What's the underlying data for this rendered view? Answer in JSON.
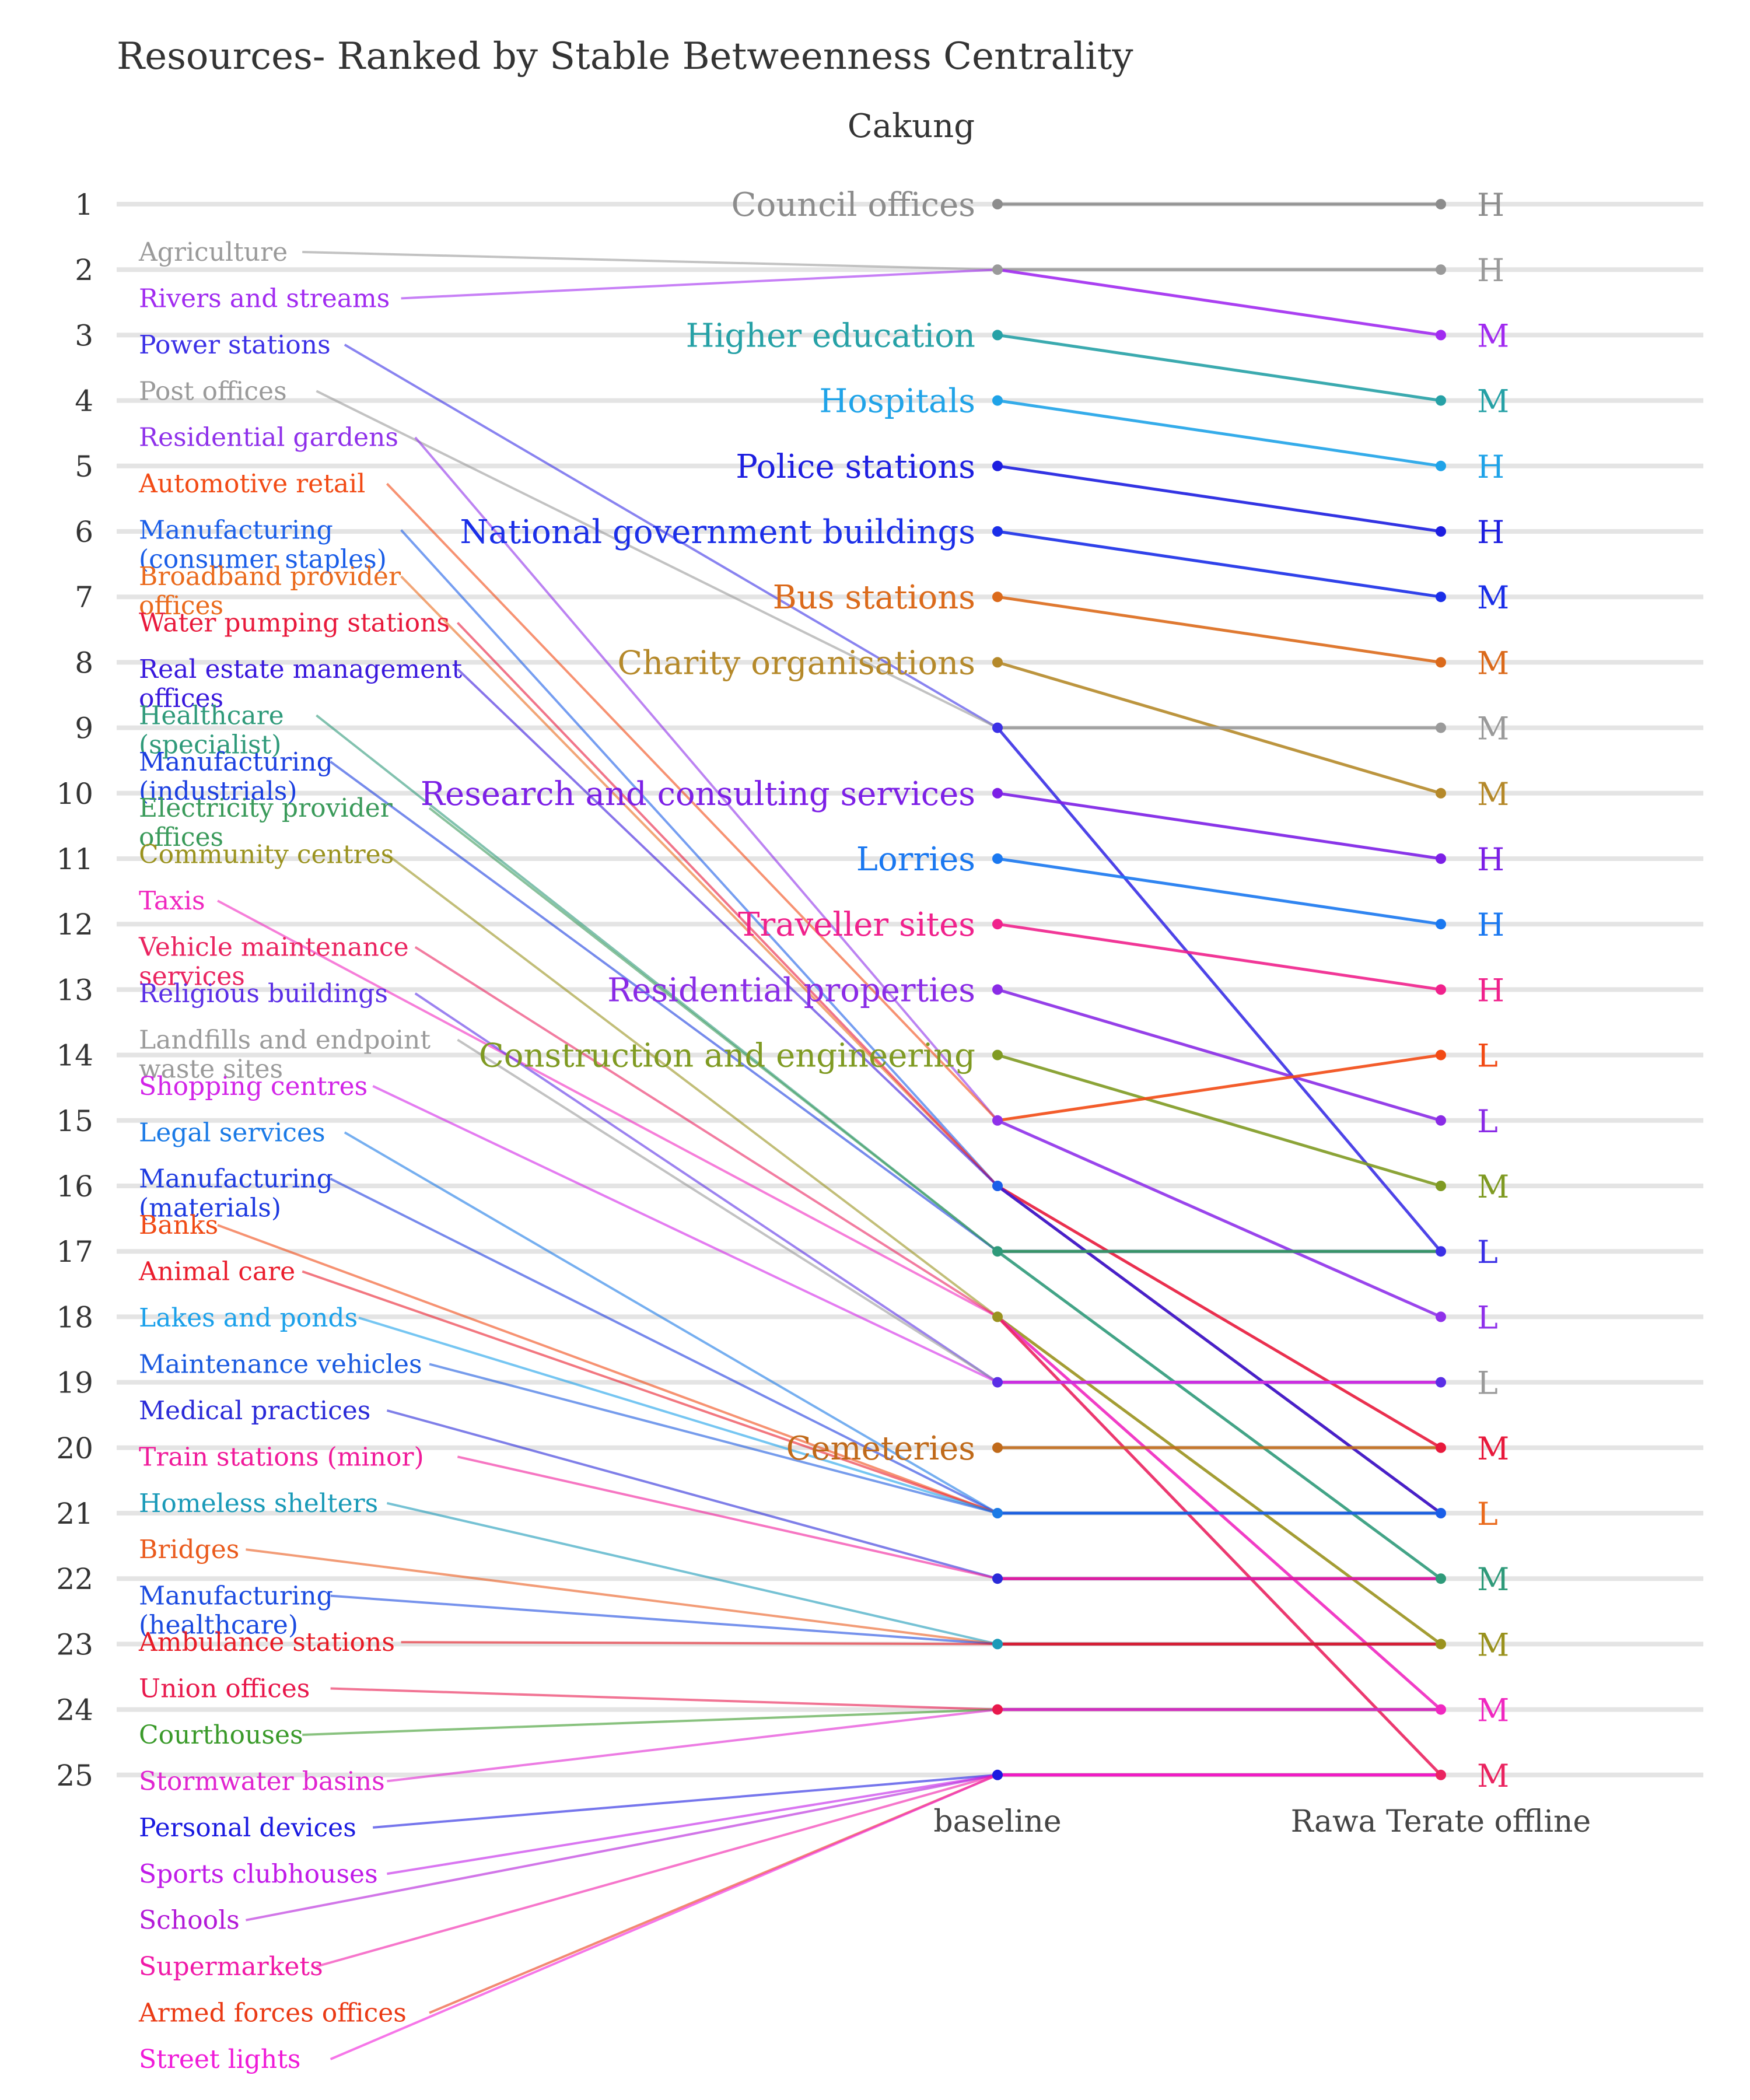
{
  "chart_data": {
    "type": "line",
    "title": "Resources- Ranked by Stable Betweenness Centrality",
    "subtitle": "Cakung",
    "x_categories": [
      "baseline",
      "Rawa Terate offline"
    ],
    "y_ticks": [
      "1",
      "2",
      "3",
      "4",
      "5",
      "6",
      "7",
      "8",
      "9",
      "10",
      "11",
      "12",
      "13",
      "14",
      "15",
      "16",
      "17",
      "18",
      "19",
      "20",
      "21",
      "22",
      "23",
      "24",
      "25"
    ],
    "ylim": [
      1,
      25
    ],
    "y_reversed": true,
    "grid": true,
    "series": [
      {
        "name": "Council offices",
        "baseline": 1,
        "offline": 1,
        "level": "H",
        "color": "#8c8c8c",
        "label_side": "right"
      },
      {
        "name": "Agriculture",
        "baseline": 2,
        "offline": 2,
        "level": "H",
        "color": "#9a9a9a",
        "label_side": "left"
      },
      {
        "name": "Rivers and streams",
        "baseline": 2,
        "offline": 3,
        "level": "M",
        "color": "#a12bf0",
        "label_side": "left"
      },
      {
        "name": "Higher education",
        "baseline": 3,
        "offline": 4,
        "level": "M",
        "color": "#26a1a6",
        "label_side": "right"
      },
      {
        "name": "Hospitals",
        "baseline": 4,
        "offline": 5,
        "level": "H",
        "color": "#1fa3e8",
        "label_side": "right"
      },
      {
        "name": "Police stations",
        "baseline": 5,
        "offline": 6,
        "level": "H",
        "color": "#1d1ee0",
        "label_side": "right"
      },
      {
        "name": "National government buildings",
        "baseline": 6,
        "offline": 7,
        "level": "M",
        "color": "#1a2ee8",
        "label_side": "right"
      },
      {
        "name": "Bus stations",
        "baseline": 7,
        "offline": 8,
        "level": "M",
        "color": "#db6a1b",
        "label_side": "right"
      },
      {
        "name": "Charity organisations",
        "baseline": 8,
        "offline": 10,
        "level": "M",
        "color": "#b5892a",
        "label_side": "right"
      },
      {
        "name": "Power stations",
        "baseline": 9,
        "offline": 17,
        "level": "L",
        "color": "#3b30e6",
        "label_side": "left"
      },
      {
        "name": "Post offices",
        "baseline": 9,
        "offline": 9,
        "level": "M",
        "color": "#9a9a9a",
        "label_side": "left"
      },
      {
        "name": "Research and consulting services",
        "baseline": 10,
        "offline": 11,
        "level": "H",
        "color": "#7c1fe6",
        "label_side": "right"
      },
      {
        "name": "Lorries",
        "baseline": 11,
        "offline": 12,
        "level": "H",
        "color": "#1a78f0",
        "label_side": "right"
      },
      {
        "name": "Traveller sites",
        "baseline": 12,
        "offline": 13,
        "level": "H",
        "color": "#f0218c",
        "label_side": "right"
      },
      {
        "name": "Residential properties",
        "baseline": 13,
        "offline": 15,
        "level": "L",
        "color": "#8a2be6",
        "label_side": "right"
      },
      {
        "name": "Construction and engineering",
        "baseline": 14,
        "offline": 16,
        "level": "M",
        "color": "#7f9a22",
        "label_side": "right"
      },
      {
        "name": "Residential gardens",
        "baseline": 15,
        "offline": 18,
        "level": "L",
        "color": "#8f31ea",
        "label_side": "left"
      },
      {
        "name": "Automotive retail",
        "baseline": 15,
        "offline": 14,
        "level": "L",
        "color": "#f24a14",
        "label_side": "left"
      },
      {
        "name": "Manufacturing\n(consumer staples)",
        "baseline": 16,
        "offline": 21,
        "level": "",
        "color": "#1a5ee8",
        "label_side": "left"
      },
      {
        "name": "Broadband provider\noffices",
        "baseline": 16,
        "offline": 21,
        "level": "L",
        "color": "#ea6a1c",
        "label_side": "left"
      },
      {
        "name": "Water pumping stations",
        "baseline": 16,
        "offline": 20,
        "level": "M",
        "color": "#e8193c",
        "label_side": "left"
      },
      {
        "name": "Real estate management\noffices",
        "baseline": 16,
        "offline": 21,
        "level": "",
        "color": "#3818dc",
        "label_side": "left"
      },
      {
        "name": "Healthcare\n(specialist)",
        "baseline": 17,
        "offline": 22,
        "level": "M",
        "color": "#2f9a7a",
        "label_side": "left"
      },
      {
        "name": "Manufacturing\n(industrials)",
        "baseline": 17,
        "offline": 17,
        "level": "",
        "color": "#1a3ee0",
        "label_side": "left"
      },
      {
        "name": "Electricity provider\noffices",
        "baseline": 17,
        "offline": 17,
        "level": "",
        "color": "#3a9a5a",
        "label_side": "left"
      },
      {
        "name": "Community centres",
        "baseline": 18,
        "offline": 23,
        "level": "M",
        "color": "#9a921e",
        "label_side": "left"
      },
      {
        "name": "Taxis",
        "baseline": 18,
        "offline": 24,
        "level": "M",
        "color": "#f028c0",
        "label_side": "left"
      },
      {
        "name": "Vehicle maintenance\nservices",
        "baseline": 18,
        "offline": 25,
        "level": "M",
        "color": "#ea2460",
        "label_side": "left"
      },
      {
        "name": "Religious buildings",
        "baseline": 19,
        "offline": 19,
        "level": "",
        "color": "#5a2ee6",
        "label_side": "left"
      },
      {
        "name": "Landfills and endpoint\nwaste sites",
        "baseline": 19,
        "offline": 19,
        "level": "L",
        "color": "#9a9a9a",
        "label_side": "left"
      },
      {
        "name": "Shopping centres",
        "baseline": 19,
        "offline": 19,
        "level": "",
        "color": "#d224e8",
        "label_side": "left"
      },
      {
        "name": "Legal services",
        "baseline": 21,
        "offline": 21,
        "level": "",
        "color": "#1a7ae6",
        "label_side": "left"
      },
      {
        "name": "Manufacturing\n(materials)",
        "baseline": 21,
        "offline": 21,
        "level": "",
        "color": "#1d3ae0",
        "label_side": "left"
      },
      {
        "name": "Cemeteries",
        "baseline": 20,
        "offline": 20,
        "level": "",
        "color": "#c06a1a",
        "label_side": "right"
      },
      {
        "name": "Banks",
        "baseline": 21,
        "offline": 21,
        "level": "",
        "color": "#f04a14",
        "label_side": "left"
      },
      {
        "name": "Animal care",
        "baseline": 21,
        "offline": 21,
        "level": "",
        "color": "#ea1c2c",
        "label_side": "left"
      },
      {
        "name": "Lakes and ponds",
        "baseline": 21,
        "offline": 21,
        "level": "",
        "color": "#1aa0ea",
        "label_side": "left"
      },
      {
        "name": "Maintenance vehicles",
        "baseline": 21,
        "offline": 21,
        "level": "",
        "color": "#1a5ae0",
        "label_side": "left"
      },
      {
        "name": "Medical practices",
        "baseline": 22,
        "offline": 22,
        "level": "",
        "color": "#2a2ad8",
        "label_side": "left"
      },
      {
        "name": "Train stations (minor)",
        "baseline": 22,
        "offline": 22,
        "level": "",
        "color": "#f01a9a",
        "label_side": "left"
      },
      {
        "name": "Homeless shelters",
        "baseline": 23,
        "offline": 23,
        "level": "",
        "color": "#1a9ab8",
        "label_side": "left"
      },
      {
        "name": "Bridges",
        "baseline": 23,
        "offline": 23,
        "level": "",
        "color": "#ea5a1c",
        "label_side": "left"
      },
      {
        "name": "Manufacturing\n(healthcare)",
        "baseline": 23,
        "offline": 23,
        "level": "",
        "color": "#1a4ae0",
        "label_side": "left"
      },
      {
        "name": "Ambulance stations",
        "baseline": 23,
        "offline": 23,
        "level": "",
        "color": "#e81a24",
        "label_side": "left"
      },
      {
        "name": "Union offices",
        "baseline": 24,
        "offline": 24,
        "level": "",
        "color": "#e8184c",
        "label_side": "left"
      },
      {
        "name": "Courthouses",
        "baseline": 24,
        "offline": 24,
        "level": "",
        "color": "#3a9a2a",
        "label_side": "left"
      },
      {
        "name": "Stormwater basins",
        "baseline": 24,
        "offline": 24,
        "level": "",
        "color": "#e024d0",
        "label_side": "left"
      },
      {
        "name": "Personal devices",
        "baseline": 25,
        "offline": 25,
        "level": "",
        "color": "#1a1ae0",
        "label_side": "left"
      },
      {
        "name": "Sports clubhouses",
        "baseline": 25,
        "offline": 25,
        "level": "",
        "color": "#c01ae8",
        "label_side": "left"
      },
      {
        "name": "Schools",
        "baseline": 25,
        "offline": 25,
        "level": "",
        "color": "#b31ad8",
        "label_side": "left"
      },
      {
        "name": "Supermarkets",
        "baseline": 25,
        "offline": 25,
        "level": "",
        "color": "#f01aa8",
        "label_side": "left"
      },
      {
        "name": "Armed forces offices",
        "baseline": 25,
        "offline": 25,
        "level": "",
        "color": "#ea3a14",
        "label_side": "left"
      },
      {
        "name": "Street lights",
        "baseline": 25,
        "offline": 25,
        "level": "",
        "color": "#f01ad8",
        "label_side": "left"
      }
    ]
  }
}
